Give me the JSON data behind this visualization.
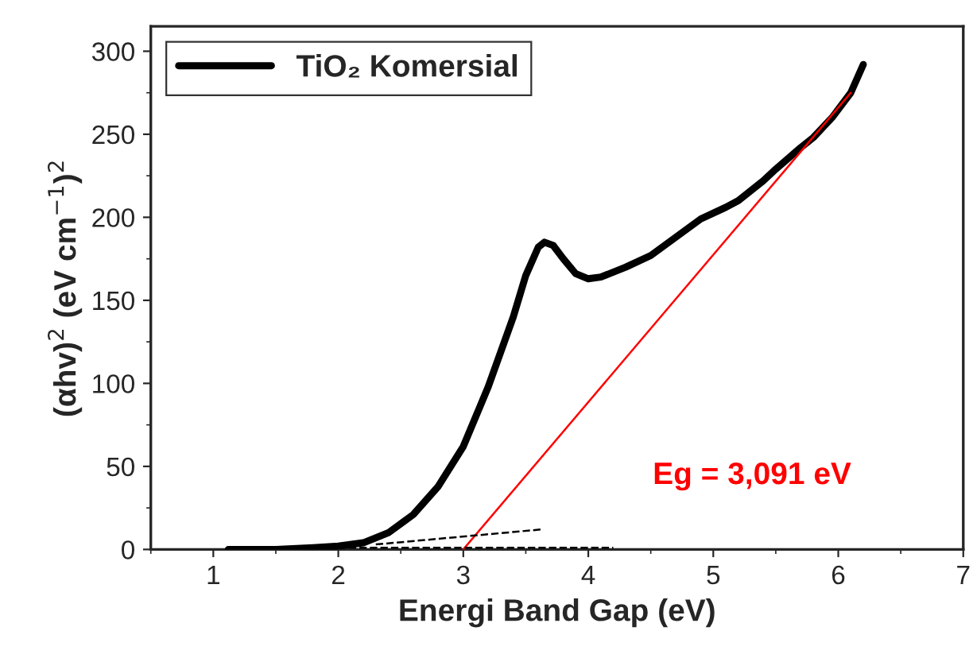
{
  "chart_data": {
    "type": "line",
    "xlabel": "Energi Band Gap (eV)",
    "ylabel": "(αhv)$^{2}$ (eV cm$^{−1}$)$^{2}$",
    "xlim": [
      0.5,
      7
    ],
    "ylim": [
      0,
      315
    ],
    "xticks": [
      1,
      2,
      3,
      4,
      5,
      6,
      7
    ],
    "yticks": [
      0,
      50,
      100,
      150,
      200,
      250,
      300
    ],
    "legend": "top left",
    "grid": false,
    "series": [
      {
        "name": "TiO₂ Komersial",
        "color": "#000000",
        "line_style": "solid",
        "x": [
          1.12,
          1.5,
          1.8,
          2.0,
          2.2,
          2.4,
          2.6,
          2.8,
          3.0,
          3.2,
          3.4,
          3.5,
          3.6,
          3.65,
          3.72,
          3.8,
          3.9,
          4.0,
          4.1,
          4.3,
          4.5,
          4.7,
          4.9,
          5.1,
          5.2,
          5.4,
          5.5,
          5.7,
          5.8,
          5.95,
          6.1,
          6.2
        ],
        "values": [
          0,
          0,
          1,
          2,
          4,
          10,
          21,
          38,
          62,
          98,
          140,
          165,
          182,
          185,
          183,
          175,
          166,
          163,
          164,
          170,
          177,
          188,
          199,
          206,
          210,
          222,
          229,
          242,
          248,
          260,
          275,
          292
        ]
      },
      {
        "color": "#ff0000",
        "line_style": "solid",
        "x": [
          3.0,
          6.1
        ],
        "values": [
          0,
          275
        ]
      },
      {
        "color": "#000000",
        "line_style": "dashed",
        "x": [
          2.3,
          3.62
        ],
        "values": [
          3,
          12
        ]
      },
      {
        "color": "#000000",
        "line_style": "dashed",
        "x": [
          2.0,
          4.2
        ],
        "values": [
          1,
          1
        ]
      }
    ],
    "annotations": [
      "Eg = 3,091 eV"
    ]
  }
}
